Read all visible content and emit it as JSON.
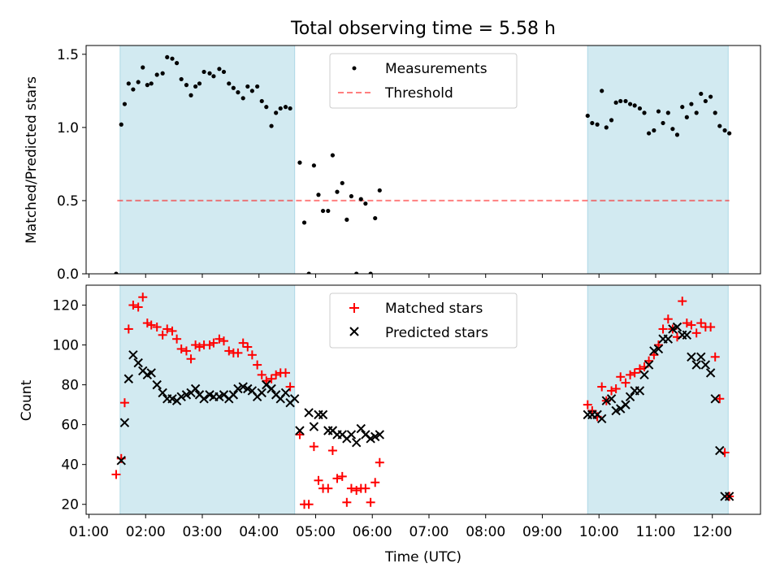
{
  "figure_title": "Total observing time = 5.58 h",
  "colors": {
    "shade": "#add8e6",
    "threshold": "#ff0000",
    "measure": "#000000",
    "matched": "#ff0000",
    "predicted": "#000000"
  },
  "chart_data": [
    {
      "type": "scatter",
      "title": "Total observing time = 5.58 h",
      "ylabel": "Matched/Predicted stars",
      "xlabel": "",
      "x_unit": "hours UTC",
      "xlim": [
        0.95,
        12.85
      ],
      "ylim": [
        0,
        1.56
      ],
      "yticks": [
        0.0,
        0.5,
        1.0,
        1.5
      ],
      "ytick_labels": [
        "0.0",
        "0.5",
        "1.0",
        "1.5"
      ],
      "shaded_intervals": [
        [
          1.55,
          4.63
        ],
        [
          9.8,
          12.28
        ]
      ],
      "legend": {
        "position": "top-center",
        "entries": [
          "Measurements",
          "Threshold"
        ]
      },
      "threshold": {
        "name": "Threshold",
        "y": 0.5,
        "x_range": [
          1.5,
          12.3
        ]
      },
      "series": [
        {
          "name": "Measurements",
          "x": [
            1.48,
            1.57,
            1.63,
            1.7,
            1.78,
            1.87,
            1.95,
            2.03,
            2.1,
            2.2,
            2.3,
            2.38,
            2.47,
            2.55,
            2.63,
            2.72,
            2.8,
            2.88,
            2.95,
            3.03,
            3.13,
            3.2,
            3.3,
            3.38,
            3.47,
            3.55,
            3.63,
            3.72,
            3.8,
            3.88,
            3.97,
            4.05,
            4.13,
            4.22,
            4.3,
            4.38,
            4.47,
            4.55,
            4.72,
            4.8,
            4.88,
            4.97,
            5.05,
            5.13,
            5.22,
            5.3,
            5.38,
            5.47,
            5.55,
            5.63,
            5.72,
            5.8,
            5.88,
            5.97,
            6.05,
            6.13,
            9.8,
            9.88,
            9.97,
            10.05,
            10.13,
            10.22,
            10.3,
            10.38,
            10.47,
            10.55,
            10.63,
            10.72,
            10.8,
            10.88,
            10.97,
            11.05,
            11.13,
            11.22,
            11.3,
            11.38,
            11.47,
            11.55,
            11.63,
            11.72,
            11.8,
            11.88,
            11.97,
            12.05,
            12.13,
            12.22,
            12.3
          ],
          "y": [
            0.0,
            1.02,
            1.16,
            1.3,
            1.26,
            1.31,
            1.41,
            1.29,
            1.3,
            1.36,
            1.37,
            1.48,
            1.47,
            1.44,
            1.33,
            1.29,
            1.22,
            1.28,
            1.3,
            1.38,
            1.37,
            1.35,
            1.4,
            1.38,
            1.3,
            1.27,
            1.24,
            1.2,
            1.28,
            1.25,
            1.28,
            1.18,
            1.14,
            1.01,
            1.1,
            1.13,
            1.14,
            1.13,
            0.76,
            0.35,
            0.0,
            0.74,
            0.54,
            0.43,
            0.43,
            0.81,
            0.56,
            0.62,
            0.37,
            0.53,
            0.0,
            0.51,
            0.48,
            0.0,
            0.38,
            0.57,
            1.08,
            1.03,
            1.02,
            1.25,
            1.0,
            1.05,
            1.17,
            1.18,
            1.18,
            1.16,
            1.15,
            1.13,
            1.1,
            0.96,
            0.98,
            1.11,
            1.03,
            1.1,
            0.99,
            0.95,
            1.14,
            1.07,
            1.16,
            1.1,
            1.23,
            1.18,
            1.21,
            1.1,
            1.01,
            0.98,
            0.96
          ]
        }
      ]
    },
    {
      "type": "scatter",
      "xlabel": "Time (UTC)",
      "ylabel": "Count",
      "xlim": [
        0.95,
        12.85
      ],
      "ylim": [
        15,
        130
      ],
      "yticks": [
        20,
        40,
        60,
        80,
        100,
        120
      ],
      "xticks": [
        1,
        2,
        3,
        4,
        5,
        6,
        7,
        8,
        9,
        10,
        11,
        12
      ],
      "xtick_labels": [
        "01:00",
        "02:00",
        "03:00",
        "04:00",
        "05:00",
        "06:00",
        "07:00",
        "08:00",
        "09:00",
        "10:00",
        "11:00",
        "12:00"
      ],
      "shaded_intervals": [
        [
          1.55,
          4.63
        ],
        [
          9.8,
          12.28
        ]
      ],
      "legend": {
        "position": "top-center",
        "entries": [
          "Matched stars",
          "Predicted stars"
        ]
      },
      "series": [
        {
          "name": "Matched stars",
          "marker": "+",
          "x": [
            1.48,
            1.57,
            1.63,
            1.7,
            1.78,
            1.87,
            1.95,
            2.03,
            2.1,
            2.2,
            2.3,
            2.38,
            2.47,
            2.55,
            2.63,
            2.72,
            2.8,
            2.88,
            2.95,
            3.03,
            3.13,
            3.2,
            3.3,
            3.38,
            3.47,
            3.55,
            3.63,
            3.72,
            3.8,
            3.88,
            3.97,
            4.05,
            4.13,
            4.22,
            4.3,
            4.38,
            4.47,
            4.55,
            4.72,
            4.8,
            4.88,
            4.97,
            5.05,
            5.13,
            5.22,
            5.3,
            5.38,
            5.47,
            5.55,
            5.63,
            5.72,
            5.8,
            5.88,
            5.97,
            6.05,
            6.13,
            9.8,
            9.88,
            9.97,
            10.05,
            10.13,
            10.22,
            10.3,
            10.38,
            10.47,
            10.55,
            10.63,
            10.72,
            10.8,
            10.88,
            10.97,
            11.05,
            11.13,
            11.22,
            11.3,
            11.38,
            11.47,
            11.55,
            11.63,
            11.72,
            11.8,
            11.88,
            11.97,
            12.05,
            12.13,
            12.22,
            12.3
          ],
          "y": [
            35,
            43,
            71,
            108,
            120,
            119,
            124,
            111,
            110,
            109,
            105,
            108,
            107,
            103,
            98,
            97,
            93,
            100,
            99,
            100,
            100,
            101,
            103,
            102,
            97,
            96,
            96,
            101,
            99,
            95,
            90,
            85,
            82,
            83,
            85,
            86,
            86,
            79,
            55,
            20,
            20,
            49,
            32,
            28,
            28,
            47,
            33,
            34,
            21,
            28,
            27,
            28,
            28,
            21,
            31,
            41,
            70,
            67,
            64,
            79,
            72,
            77,
            78,
            84,
            81,
            85,
            86,
            88,
            89,
            92,
            95,
            100,
            108,
            113,
            108,
            104,
            122,
            111,
            110,
            106,
            111,
            109,
            109,
            94,
            73,
            46,
            24
          ]
        },
        {
          "name": "Predicted stars",
          "marker": "x",
          "x": [
            1.57,
            1.63,
            1.7,
            1.78,
            1.87,
            1.95,
            2.03,
            2.1,
            2.2,
            2.3,
            2.38,
            2.47,
            2.55,
            2.63,
            2.72,
            2.8,
            2.88,
            2.95,
            3.03,
            3.13,
            3.2,
            3.3,
            3.38,
            3.47,
            3.55,
            3.63,
            3.72,
            3.8,
            3.88,
            3.97,
            4.05,
            4.13,
            4.22,
            4.3,
            4.38,
            4.47,
            4.55,
            4.63,
            4.72,
            4.88,
            4.97,
            5.05,
            5.13,
            5.22,
            5.3,
            5.38,
            5.47,
            5.55,
            5.63,
            5.72,
            5.8,
            5.88,
            5.97,
            6.05,
            6.13,
            9.8,
            9.88,
            9.97,
            10.05,
            10.13,
            10.22,
            10.3,
            10.38,
            10.47,
            10.55,
            10.63,
            10.72,
            10.8,
            10.88,
            10.97,
            11.05,
            11.13,
            11.22,
            11.3,
            11.38,
            11.47,
            11.55,
            11.63,
            11.72,
            11.8,
            11.88,
            11.97,
            12.05,
            12.13,
            12.22,
            12.3
          ],
          "y": [
            42,
            61,
            83,
            95,
            91,
            87,
            85,
            86,
            80,
            76,
            73,
            73,
            72,
            74,
            75,
            76,
            78,
            75,
            73,
            75,
            74,
            74,
            75,
            73,
            75,
            78,
            79,
            78,
            77,
            74,
            76,
            80,
            78,
            75,
            73,
            76,
            71,
            73,
            57,
            66,
            59,
            65,
            65,
            57,
            57,
            55,
            55,
            53,
            55,
            51,
            58,
            55,
            53,
            54,
            55,
            65,
            65,
            65,
            63,
            72,
            73,
            67,
            68,
            70,
            74,
            77,
            77,
            85,
            90,
            97,
            98,
            103,
            103,
            108,
            109,
            105,
            105,
            94,
            90,
            94,
            90,
            86,
            73,
            47,
            24,
            24
          ]
        }
      ]
    }
  ]
}
